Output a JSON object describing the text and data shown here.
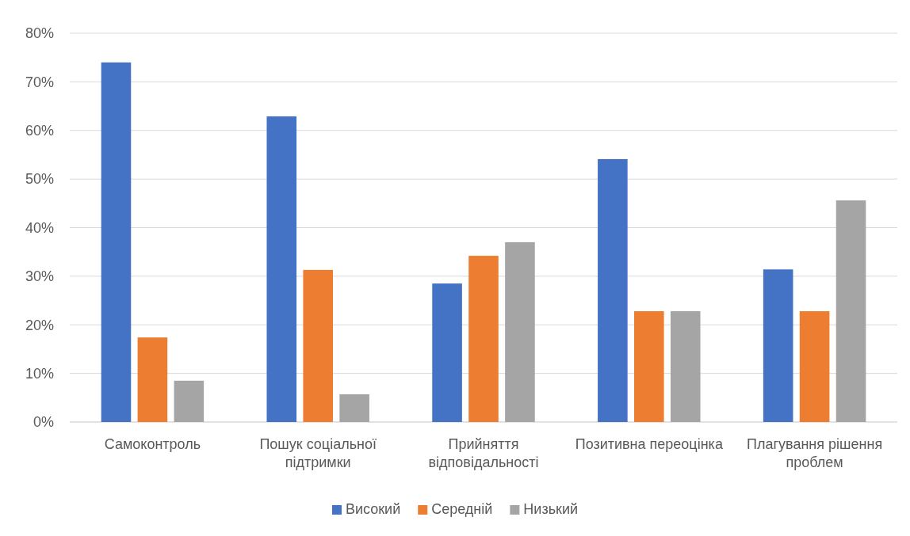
{
  "chart_data": {
    "type": "bar",
    "categories": [
      "Самоконтроль",
      "Пошук соціальної підтримки",
      "Прийняття відповідальності",
      "Позитивна переоцінка",
      "Плагування рішення проблем"
    ],
    "series": [
      {
        "name": "Високий",
        "color": "#4472c4",
        "values": [
          74,
          62.9,
          28.5,
          54.1,
          31.4
        ]
      },
      {
        "name": "Середній",
        "color": "#ed7d31",
        "values": [
          17.4,
          31.3,
          34.2,
          22.8,
          22.8
        ]
      },
      {
        "name": "Низький",
        "color": "#a5a5a5",
        "values": [
          8.5,
          5.7,
          37.0,
          22.8,
          45.6
        ]
      }
    ],
    "ylim": [
      0,
      80
    ],
    "yticks": [
      {
        "value": 0,
        "label": "0%"
      },
      {
        "value": 10,
        "label": "10%"
      },
      {
        "value": 20,
        "label": "20%"
      },
      {
        "value": 30,
        "label": "30%"
      },
      {
        "value": 40,
        "label": "40%"
      },
      {
        "value": 50,
        "label": "50%"
      },
      {
        "value": 60,
        "label": "60%"
      },
      {
        "value": 70,
        "label": "70%"
      },
      {
        "value": 80,
        "label": "80%"
      }
    ],
    "grid": "y",
    "legend": "bottom"
  }
}
